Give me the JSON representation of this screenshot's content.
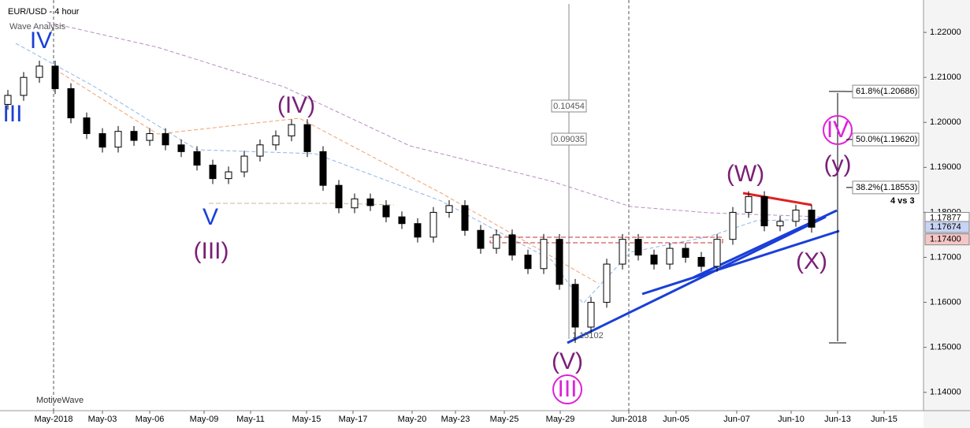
{
  "chart_data": {
    "type": "candlestick",
    "title": "EUR/USD - 4 hour",
    "subtitle": "Wave Analysis",
    "footer": "MotiveWave",
    "xlim": [
      -0.5,
      58.1
    ],
    "xticks": [
      {
        "value": 2.9,
        "label": "May-2018"
      },
      {
        "value": 6,
        "label": "May-03"
      },
      {
        "value": 9,
        "label": "May-06"
      },
      {
        "value": 12.45,
        "label": "May-09"
      },
      {
        "value": 15.4,
        "label": "May-11"
      },
      {
        "value": 18.95,
        "label": "May-15"
      },
      {
        "value": 21.9,
        "label": "May-17"
      },
      {
        "value": 25.65,
        "label": "May-20"
      },
      {
        "value": 28.4,
        "label": "May-23"
      },
      {
        "value": 31.5,
        "label": "May-25"
      },
      {
        "value": 35.05,
        "label": "May-29"
      },
      {
        "value": 39.4,
        "label": "Jun-2018"
      },
      {
        "value": 42.4,
        "label": "Jun-05"
      },
      {
        "value": 46.25,
        "label": "Jun-07"
      },
      {
        "value": 49.7,
        "label": "Jun-10"
      },
      {
        "value": 52.65,
        "label": "Jun-13"
      },
      {
        "value": 55.6,
        "label": "Jun-15"
      }
    ],
    "ylim": [
      1.1361,
      1.2272
    ],
    "yticks": [
      {
        "value": 1.14,
        "label": "1.14000"
      },
      {
        "value": 1.15,
        "label": "1.15000"
      },
      {
        "value": 1.16,
        "label": "1.16000"
      },
      {
        "value": 1.17,
        "label": "1.17000"
      },
      {
        "value": 1.18,
        "label": "1.18000"
      },
      {
        "value": 1.19,
        "label": "1.19000"
      },
      {
        "value": 1.2,
        "label": "1.20000"
      },
      {
        "value": 1.21,
        "label": "1.21000"
      },
      {
        "value": 1.22,
        "label": "1.22000"
      }
    ],
    "up_color": "#ffffff",
    "down_color": "#000000",
    "candles": [
      [
        1.204,
        1.2072,
        1.2028,
        1.206
      ],
      [
        1.206,
        1.2112,
        1.2048,
        1.21
      ],
      [
        1.21,
        1.2137,
        1.2088,
        1.2125
      ],
      [
        1.2125,
        1.2137,
        1.2063,
        1.2075
      ],
      [
        1.2075,
        1.2087,
        1.1998,
        1.201
      ],
      [
        1.201,
        1.2022,
        1.1963,
        1.1975
      ],
      [
        1.1975,
        1.1987,
        1.1933,
        1.1945
      ],
      [
        1.1945,
        1.1992,
        1.1933,
        1.198
      ],
      [
        1.198,
        1.1992,
        1.1948,
        1.196
      ],
      [
        1.196,
        1.1987,
        1.1948,
        1.1975
      ],
      [
        1.1975,
        1.1987,
        1.1938,
        1.195
      ],
      [
        1.195,
        1.1962,
        1.1923,
        1.1935
      ],
      [
        1.1935,
        1.1947,
        1.1893,
        1.1905
      ],
      [
        1.1905,
        1.1917,
        1.1863,
        1.1875
      ],
      [
        1.1875,
        1.1902,
        1.1863,
        1.189
      ],
      [
        1.189,
        1.1937,
        1.1878,
        1.1925
      ],
      [
        1.1925,
        1.1962,
        1.1913,
        1.195
      ],
      [
        1.195,
        1.1982,
        1.1938,
        1.197
      ],
      [
        1.197,
        1.2007,
        1.1958,
        1.1995
      ],
      [
        1.1995,
        1.2007,
        1.1923,
        1.1935
      ],
      [
        1.1935,
        1.1947,
        1.1848,
        1.186
      ],
      [
        1.186,
        1.1872,
        1.1798,
        1.181
      ],
      [
        1.181,
        1.1842,
        1.1798,
        1.183
      ],
      [
        1.183,
        1.1842,
        1.1803,
        1.1815
      ],
      [
        1.1815,
        1.1827,
        1.1778,
        1.179
      ],
      [
        1.179,
        1.1802,
        1.1763,
        1.1775
      ],
      [
        1.1775,
        1.1787,
        1.1733,
        1.1745
      ],
      [
        1.1745,
        1.1812,
        1.1733,
        1.18
      ],
      [
        1.18,
        1.1827,
        1.1788,
        1.1815
      ],
      [
        1.1815,
        1.1827,
        1.1748,
        1.176
      ],
      [
        1.176,
        1.1772,
        1.1708,
        1.172
      ],
      [
        1.172,
        1.1762,
        1.1708,
        1.175
      ],
      [
        1.175,
        1.1762,
        1.1693,
        1.1705
      ],
      [
        1.1705,
        1.1717,
        1.1663,
        1.1675
      ],
      [
        1.1675,
        1.1752,
        1.1663,
        1.174
      ],
      [
        1.174,
        1.1752,
        1.1628,
        1.164
      ],
      [
        1.164,
        1.1652,
        1.151,
        1.1545
      ],
      [
        1.1545,
        1.1612,
        1.1533,
        1.16
      ],
      [
        1.16,
        1.1697,
        1.1588,
        1.1685
      ],
      [
        1.1685,
        1.1752,
        1.1673,
        1.174
      ],
      [
        1.174,
        1.1752,
        1.1693,
        1.1705
      ],
      [
        1.1705,
        1.1717,
        1.1673,
        1.1685
      ],
      [
        1.1685,
        1.1732,
        1.1673,
        1.172
      ],
      [
        1.172,
        1.1732,
        1.1688,
        1.17
      ],
      [
        1.17,
        1.1712,
        1.1668,
        1.168
      ],
      [
        1.168,
        1.1752,
        1.1668,
        1.174
      ],
      [
        1.174,
        1.1812,
        1.1728,
        1.18
      ],
      [
        1.18,
        1.1847,
        1.1788,
        1.1835
      ],
      [
        1.1835,
        1.1847,
        1.1758,
        1.177
      ],
      [
        1.177,
        1.1792,
        1.1758,
        1.178
      ],
      [
        1.178,
        1.1817,
        1.1768,
        1.1805
      ],
      [
        1.1805,
        1.1817,
        1.1755,
        1.1767
      ]
    ],
    "price_tags": [
      {
        "value": 1.17877,
        "label": "1.17877",
        "color": "#ffffff"
      },
      {
        "value": 1.17674,
        "label": "1.17674",
        "color": "#c8d4f4"
      },
      {
        "value": 1.174,
        "label": "1.17400",
        "color": "#f6c6c6"
      }
    ],
    "fib_levels": [
      {
        "value": 1.20686,
        "label": "61.8%(1.20686)"
      },
      {
        "value": 1.1962,
        "label": "50.0%(1.19620)"
      },
      {
        "value": 1.18553,
        "label": "38.2%(1.18553)"
      }
    ],
    "annotations": {
      "w4": "IV",
      "w3": "III",
      "w5": "V",
      "p3": "(III)",
      "p4": "(IV)",
      "p5": "(V)",
      "m3": "III",
      "pw": "(W)",
      "py": "(y)",
      "m4": "IV",
      "px": "(X)",
      "vs": "4 vs 3",
      "low": "1.15102",
      "r1": "0.10454",
      "r2": "0.09035"
    }
  }
}
